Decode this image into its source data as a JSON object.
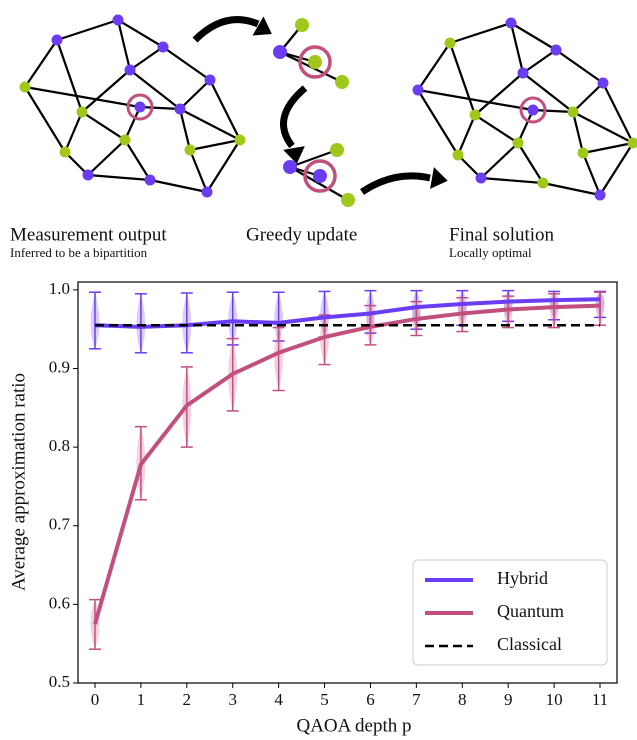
{
  "diagram": {
    "panels": [
      {
        "title": "Measurement output",
        "subtitle": "Inferred to be a bipartition"
      },
      {
        "title": "Greedy update"
      },
      {
        "title": "Final solution",
        "subtitle": "Locally optimal"
      }
    ]
  },
  "chart_data": {
    "type": "line",
    "x": [
      0,
      1,
      2,
      3,
      4,
      5,
      6,
      7,
      8,
      9,
      10,
      11
    ],
    "xlabel": "QAOA depth p",
    "ylabel": "Average approximation ratio",
    "xlim": [
      -0.37,
      11.37
    ],
    "ylim": [
      0.5,
      1.01
    ],
    "xticks": [
      0,
      1,
      2,
      3,
      4,
      5,
      6,
      7,
      8,
      9,
      10,
      11
    ],
    "yticks": [
      0.5,
      0.6,
      0.7,
      0.8,
      0.9,
      {
        "value": 1,
        "label": "1.0"
      }
    ],
    "legend": "lower right",
    "series": [
      {
        "name": "Hybrid",
        "color": "#6a3df2",
        "values": [
          0.955,
          0.953,
          0.955,
          0.96,
          0.958,
          0.965,
          0.97,
          0.978,
          0.982,
          0.985,
          0.987,
          0.988
        ],
        "low": [
          0.925,
          0.92,
          0.92,
          0.93,
          0.935,
          0.94,
          0.945,
          0.95,
          0.955,
          0.96,
          0.962,
          0.965
        ],
        "high": [
          0.997,
          0.995,
          0.996,
          0.997,
          0.997,
          0.998,
          0.999,
          0.999,
          0.999,
          0.999,
          0.998,
          0.998
        ]
      },
      {
        "name": "Quantum",
        "color": "#c2507e",
        "values": [
          0.575,
          0.778,
          0.853,
          0.893,
          0.92,
          0.94,
          0.953,
          0.963,
          0.97,
          0.975,
          0.978,
          0.98
        ],
        "low": [
          0.543,
          0.733,
          0.8,
          0.846,
          0.872,
          0.905,
          0.93,
          0.942,
          0.947,
          0.952,
          0.952,
          0.955
        ],
        "high": [
          0.606,
          0.826,
          0.902,
          0.938,
          0.952,
          0.968,
          0.98,
          0.985,
          0.99,
          0.992,
          0.995,
          0.997
        ]
      },
      {
        "name": "Classical",
        "color": "#000000",
        "dashed": true,
        "values": [
          0.955,
          0.955,
          0.955,
          0.955,
          0.955,
          0.955,
          0.955,
          0.955,
          0.955,
          0.955,
          0.955,
          0.955
        ]
      }
    ]
  }
}
